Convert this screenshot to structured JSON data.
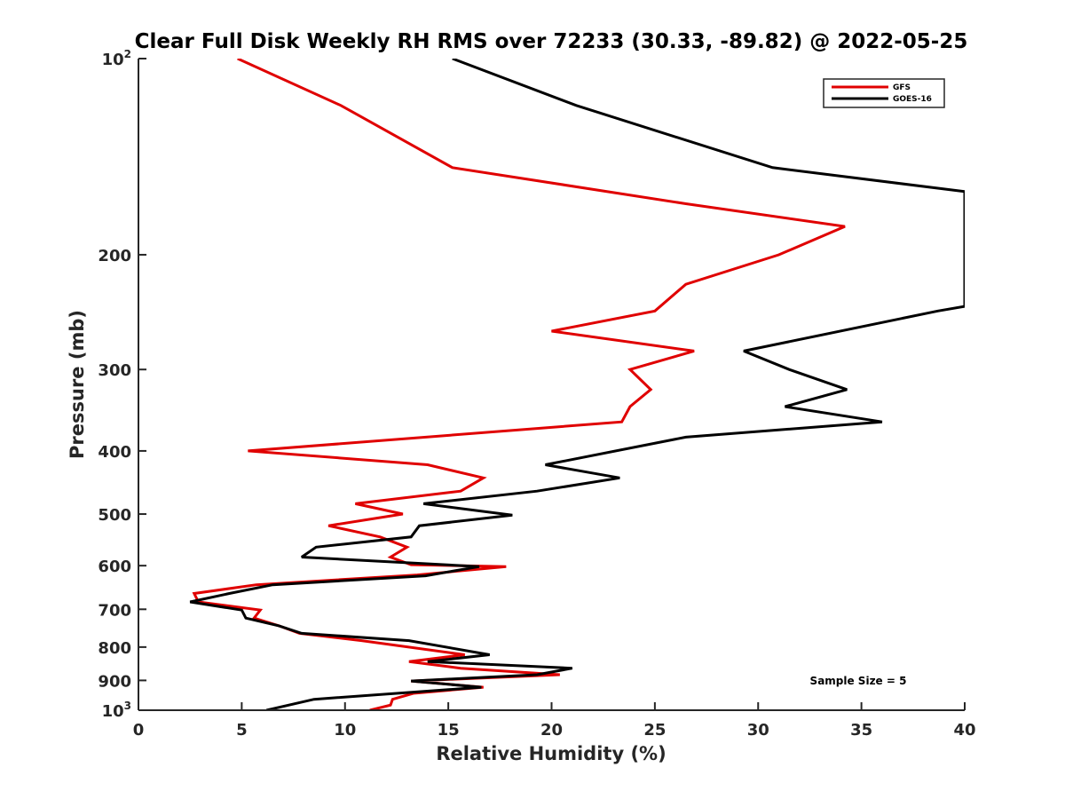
{
  "chart_data": {
    "type": "line",
    "title": "Clear Full Disk Weekly RH RMS over 72233 (30.33, -89.82) @ 2022-05-25",
    "xlabel": "Relative Humidity (%)",
    "ylabel": "Pressure (mb)",
    "xlim": [
      0,
      40
    ],
    "ylim": [
      100,
      1000
    ],
    "y_scale": "log",
    "y_reversed": true,
    "x_ticks": [
      0,
      5,
      10,
      15,
      20,
      25,
      30,
      35,
      40
    ],
    "x_tick_labels": [
      "0",
      "5",
      "10",
      "15",
      "20",
      "25",
      "30",
      "35",
      "40"
    ],
    "y_ticks": [
      {
        "value": 100,
        "label": "10",
        "sup": "2"
      },
      {
        "value": 200,
        "label": "200",
        "sup": ""
      },
      {
        "value": 300,
        "label": "300",
        "sup": ""
      },
      {
        "value": 400,
        "label": "400",
        "sup": ""
      },
      {
        "value": 500,
        "label": "500",
        "sup": ""
      },
      {
        "value": 600,
        "label": "600",
        "sup": ""
      },
      {
        "value": 700,
        "label": "700",
        "sup": ""
      },
      {
        "value": 800,
        "label": "800",
        "sup": ""
      },
      {
        "value": 900,
        "label": "900",
        "sup": ""
      },
      {
        "value": 1000,
        "label": "10",
        "sup": "3"
      }
    ],
    "grid": false,
    "legend_position": "top-right",
    "annotation": "Sample Size = 5",
    "series": [
      {
        "name": "GFS",
        "color": "#e00000",
        "points": [
          [
            4.8,
            100
          ],
          [
            9.8,
            118
          ],
          [
            15.2,
            147
          ],
          [
            26.5,
            167
          ],
          [
            34.2,
            181
          ],
          [
            31.0,
            200
          ],
          [
            26.5,
            222
          ],
          [
            25.0,
            244
          ],
          [
            20.0,
            262
          ],
          [
            26.9,
            281
          ],
          [
            23.8,
            300
          ],
          [
            24.8,
            322
          ],
          [
            23.8,
            342
          ],
          [
            23.4,
            361
          ],
          [
            5.3,
            400
          ],
          [
            14.0,
            420
          ],
          [
            16.7,
            440
          ],
          [
            15.6,
            461
          ],
          [
            10.5,
            482
          ],
          [
            12.8,
            500
          ],
          [
            9.2,
            521
          ],
          [
            11.7,
            542
          ],
          [
            13.0,
            562
          ],
          [
            12.2,
            582
          ],
          [
            13.2,
            598
          ],
          [
            17.8,
            602
          ],
          [
            13.5,
            620
          ],
          [
            5.7,
            642
          ],
          [
            2.7,
            662
          ],
          [
            2.9,
            682
          ],
          [
            5.9,
            702
          ],
          [
            5.6,
            722
          ],
          [
            6.8,
            742
          ],
          [
            7.8,
            762
          ],
          [
            10.8,
            782
          ],
          [
            15.8,
            822
          ],
          [
            13.1,
            842
          ],
          [
            15.6,
            862
          ],
          [
            20.4,
            882
          ],
          [
            13.2,
            902
          ],
          [
            16.7,
            922
          ],
          [
            13.3,
            942
          ],
          [
            12.3,
            962
          ],
          [
            12.2,
            982
          ],
          [
            11.2,
            1000
          ]
        ]
      },
      {
        "name": "GOES-16",
        "color": "#000000",
        "points": [
          [
            15.2,
            100
          ],
          [
            21.2,
            118
          ],
          [
            30.7,
            147
          ],
          [
            40.0,
            160
          ],
          [
            40.0,
            240
          ],
          [
            38.7,
            244
          ],
          [
            29.3,
            281
          ],
          [
            31.5,
            300
          ],
          [
            34.3,
            322
          ],
          [
            31.3,
            342
          ],
          [
            36.0,
            361
          ],
          [
            26.5,
            381
          ],
          [
            19.7,
            420
          ],
          [
            23.3,
            440
          ],
          [
            19.3,
            461
          ],
          [
            13.8,
            482
          ],
          [
            18.1,
            502
          ],
          [
            13.6,
            521
          ],
          [
            13.2,
            542
          ],
          [
            8.6,
            562
          ],
          [
            7.9,
            582
          ],
          [
            16.5,
            602
          ],
          [
            13.9,
            622
          ],
          [
            6.5,
            642
          ],
          [
            4.4,
            662
          ],
          [
            2.5,
            682
          ],
          [
            5.0,
            702
          ],
          [
            5.2,
            722
          ],
          [
            6.8,
            742
          ],
          [
            7.9,
            762
          ],
          [
            13.1,
            782
          ],
          [
            17.0,
            822
          ],
          [
            14.0,
            842
          ],
          [
            21.0,
            862
          ],
          [
            19.3,
            882
          ],
          [
            13.2,
            902
          ],
          [
            16.6,
            922
          ],
          [
            8.5,
            962
          ],
          [
            6.2,
            1000
          ]
        ]
      }
    ]
  }
}
